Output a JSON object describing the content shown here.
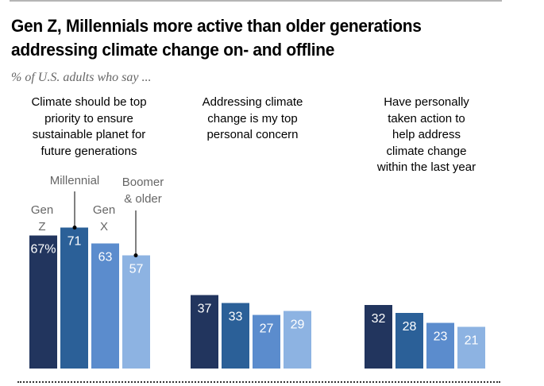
{
  "title": "Gen Z, Millennials more active than older generations addressing climate change on- and offline",
  "subtitle": "% of U.S. adults who say ...",
  "chart_data": {
    "type": "bar",
    "title": "Gen Z, Millennials more active than older generations addressing climate change on- and offline",
    "subtitle": "% of U.S. adults who say ...",
    "categories": [
      "Climate should be top priority to ensure sustainable planet for future generations",
      "Addressing climate change is my top personal concern",
      "Have personally taken action to help address climate change within the last year"
    ],
    "series": [
      {
        "name": "Gen Z",
        "values": [
          67,
          37,
          32
        ],
        "color": "#22355e"
      },
      {
        "name": "Millennial",
        "values": [
          71,
          33,
          28
        ],
        "color": "#2b6098"
      },
      {
        "name": "Gen X",
        "values": [
          63,
          27,
          23
        ],
        "color": "#5b8ccd"
      },
      {
        "name": "Boomer & older",
        "values": [
          57,
          29,
          21
        ],
        "color": "#8db3e2"
      }
    ],
    "data_labels": [
      [
        "67%",
        "71",
        "63",
        "57"
      ],
      [
        "37",
        "33",
        "27",
        "29"
      ],
      [
        "32",
        "28",
        "23",
        "21"
      ]
    ],
    "series_labels": {
      "gen_z_1": "Gen",
      "gen_z_2": "Z",
      "millennial": "Millennial",
      "gen_x_1": "Gen",
      "gen_x_2": "X",
      "boomer_1": "Boomer",
      "boomer_2": "& older"
    },
    "ylim": [
      0,
      100
    ],
    "grid": false,
    "legend": "direct labels above first group"
  },
  "group_headers": [
    [
      "Climate should be top",
      "priority to ensure",
      "sustainable planet for",
      "future generations"
    ],
    [
      "Addressing climate",
      "change is my top",
      "personal concern"
    ],
    [
      "Have personally",
      "taken action to",
      "help address",
      "climate change",
      "within the last year"
    ]
  ]
}
